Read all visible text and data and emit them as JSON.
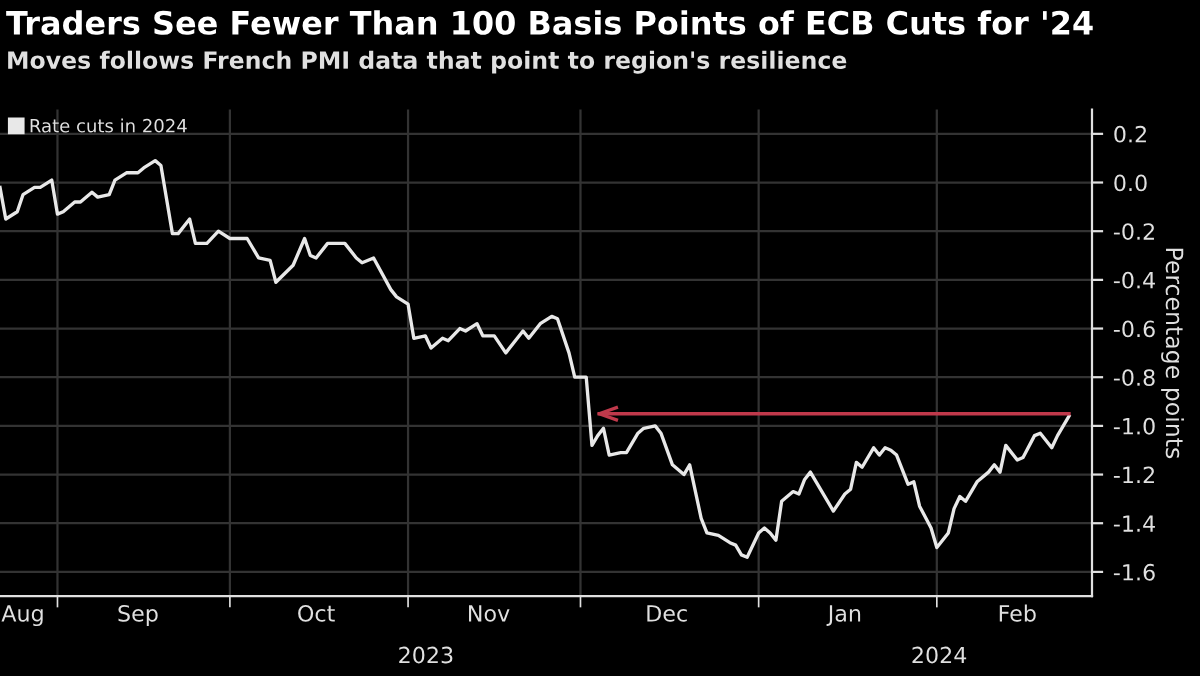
{
  "chart_data": {
    "type": "line",
    "title": "Traders See Fewer Than 100 Basis Points of ECB Cuts for '24",
    "subtitle": "Moves follows French PMI data that point to region's resilience",
    "ylabel": "Percentage points",
    "legend": "top left",
    "grid": true,
    "xlim": [
      "2023-08-22",
      "2024-02-28"
    ],
    "xticks": [
      {
        "value": "2023-08-26",
        "label": "Aug"
      },
      {
        "value": "2023-09-01",
        "label": null
      },
      {
        "value": "2023-09-15",
        "label": "Sep"
      },
      {
        "value": "2023-10-01",
        "label": null
      },
      {
        "value": "2023-10-16",
        "label": "Oct"
      },
      {
        "value": "2023-11-01",
        "label": null
      },
      {
        "value": "2023-11-15",
        "label": "Nov"
      },
      {
        "value": "2023-12-01",
        "label": null
      },
      {
        "value": "2023-12-16",
        "label": "Dec"
      },
      {
        "value": "2024-01-01",
        "label": null
      },
      {
        "value": "2024-01-16",
        "label": "Jan"
      },
      {
        "value": "2024-02-01",
        "label": null
      },
      {
        "value": "2024-02-15",
        "label": "Feb"
      }
    ],
    "ylim": [
      -1.7,
      0.3
    ],
    "yticks": [
      -1.6,
      -1.4,
      -1.2,
      {
        "value": -1.0,
        "label": "-1.0"
      },
      -0.8,
      -0.6,
      -0.4,
      -0.2,
      {
        "value": 0,
        "label": "0.0"
      },
      0.2
    ],
    "annotations": [
      "2023",
      "2024"
    ],
    "ref_lines": [
      {
        "axis": "y",
        "value": -0.95,
        "color": "#c0394b"
      }
    ],
    "series": [
      {
        "name": "Rate cuts in 2024",
        "color": "#e8e8e8",
        "x": [
          "2023-08-22",
          "2023-08-23",
          "2023-08-25",
          "2023-08-26",
          "2023-08-28",
          "2023-08-29",
          "2023-08-31",
          "2023-09-01",
          "2023-09-02",
          "2023-09-04",
          "2023-09-05",
          "2023-09-07",
          "2023-09-08",
          "2023-09-10",
          "2023-09-11",
          "2023-09-13",
          "2023-09-15",
          "2023-09-16",
          "2023-09-18",
          "2023-09-19",
          "2023-09-21",
          "2023-09-22",
          "2023-09-24",
          "2023-09-25",
          "2023-09-27",
          "2023-09-29",
          "2023-10-01",
          "2023-10-04",
          "2023-10-06",
          "2023-10-08",
          "2023-10-09",
          "2023-10-12",
          "2023-10-14",
          "2023-10-15",
          "2023-10-16",
          "2023-10-18",
          "2023-10-21",
          "2023-10-23",
          "2023-10-24",
          "2023-10-26",
          "2023-10-29",
          "2023-10-30",
          "2023-11-01",
          "2023-11-02",
          "2023-11-04",
          "2023-11-05",
          "2023-11-07",
          "2023-11-08",
          "2023-11-10",
          "2023-11-11",
          "2023-11-13",
          "2023-11-14",
          "2023-11-16",
          "2023-11-18",
          "2023-11-20",
          "2023-11-21",
          "2023-11-22",
          "2023-11-24",
          "2023-11-26",
          "2023-11-27",
          "2023-11-29",
          "2023-11-30",
          "2023-12-01",
          "2023-12-02",
          "2023-12-03",
          "2023-12-04",
          "2023-12-05",
          "2023-12-06",
          "2023-12-08",
          "2023-12-09",
          "2023-12-11",
          "2023-12-12",
          "2023-12-14",
          "2023-12-15",
          "2023-12-17",
          "2023-12-19",
          "2023-12-20",
          "2023-12-22",
          "2023-12-23",
          "2023-12-25",
          "2023-12-27",
          "2023-12-28",
          "2023-12-29",
          "2023-12-30",
          "2024-01-01",
          "2024-01-02",
          "2024-01-03",
          "2024-01-04",
          "2024-01-05",
          "2024-01-07",
          "2024-01-08",
          "2024-01-09",
          "2024-01-10",
          "2024-01-11",
          "2024-01-14",
          "2024-01-16",
          "2024-01-17",
          "2024-01-18",
          "2024-01-19",
          "2024-01-21",
          "2024-01-22",
          "2024-01-23",
          "2024-01-24",
          "2024-01-25",
          "2024-01-27",
          "2024-01-28",
          "2024-01-29",
          "2024-01-31",
          "2024-02-01",
          "2024-02-03",
          "2024-02-04",
          "2024-02-05",
          "2024-02-06",
          "2024-02-08",
          "2024-02-10",
          "2024-02-11",
          "2024-02-12",
          "2024-02-13",
          "2024-02-15",
          "2024-02-16",
          "2024-02-18",
          "2024-02-19",
          "2024-02-21",
          "2024-02-22",
          "2024-02-24"
        ],
        "values": [
          -0.02,
          -0.15,
          -0.12,
          -0.05,
          -0.02,
          -0.02,
          0.01,
          -0.13,
          -0.12,
          -0.08,
          -0.08,
          -0.04,
          -0.06,
          -0.05,
          0.01,
          0.04,
          0.04,
          0.06,
          0.09,
          0.07,
          -0.21,
          -0.21,
          -0.15,
          -0.25,
          -0.25,
          -0.2,
          -0.23,
          -0.23,
          -0.31,
          -0.32,
          -0.41,
          -0.34,
          -0.23,
          -0.3,
          -0.31,
          -0.25,
          -0.25,
          -0.31,
          -0.33,
          -0.31,
          -0.44,
          -0.47,
          -0.5,
          -0.64,
          -0.63,
          -0.68,
          -0.64,
          -0.65,
          -0.6,
          -0.61,
          -0.58,
          -0.63,
          -0.63,
          -0.7,
          -0.64,
          -0.61,
          -0.64,
          -0.58,
          -0.55,
          -0.56,
          -0.7,
          -0.8,
          -0.8,
          -0.8,
          -1.08,
          -1.04,
          -1.01,
          -1.12,
          -1.11,
          -1.11,
          -1.03,
          -1.01,
          -1.0,
          -1.03,
          -1.16,
          -1.2,
          -1.16,
          -1.38,
          -1.44,
          -1.45,
          -1.48,
          -1.49,
          -1.53,
          -1.54,
          -1.44,
          -1.42,
          -1.44,
          -1.47,
          -1.31,
          -1.27,
          -1.28,
          -1.22,
          -1.19,
          -1.23,
          -1.35,
          -1.28,
          -1.26,
          -1.15,
          -1.17,
          -1.09,
          -1.12,
          -1.09,
          -1.1,
          -1.12,
          -1.24,
          -1.23,
          -1.33,
          -1.42,
          -1.5,
          -1.44,
          -1.34,
          -1.29,
          -1.31,
          -1.23,
          -1.19,
          -1.16,
          -1.19,
          -1.08,
          -1.14,
          -1.13,
          -1.04,
          -1.03,
          -1.09,
          -1.04,
          -0.96
        ]
      }
    ]
  }
}
